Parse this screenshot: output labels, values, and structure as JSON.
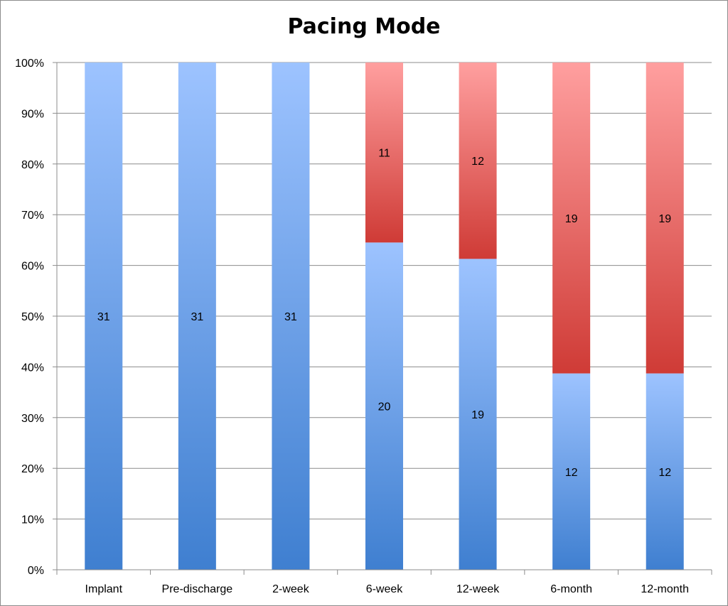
{
  "chart_data": {
    "type": "bar",
    "stacked": true,
    "percent_stacked": true,
    "title": "Pacing Mode",
    "categories": [
      "Implant",
      "Pre-discharge",
      "2-week",
      "6-week",
      "12-week",
      "6-month",
      "12-month"
    ],
    "series": [
      {
        "values": [
          31,
          31,
          31,
          20,
          19,
          12,
          12
        ],
        "color": "#4f86d4"
      },
      {
        "values": [
          0,
          0,
          0,
          11,
          12,
          19,
          19
        ],
        "color": "#d9534f"
      }
    ],
    "y_ticks": [
      "0%",
      "10%",
      "20%",
      "30%",
      "40%",
      "50%",
      "60%",
      "70%",
      "80%",
      "90%",
      "100%"
    ],
    "ylim": [
      0,
      100
    ],
    "grid": true,
    "legend": "none"
  }
}
